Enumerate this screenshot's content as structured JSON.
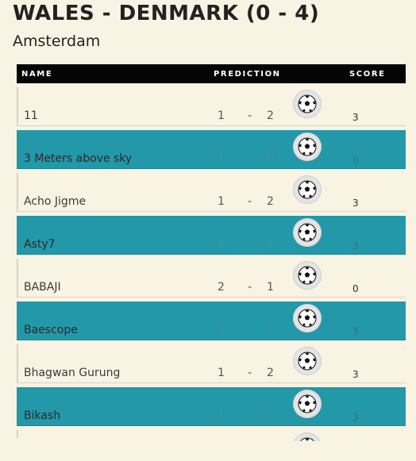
{
  "header": {
    "match_title": "WALES - DENMARK (0 - 4)",
    "venue": "Amsterdam"
  },
  "table": {
    "columns": {
      "name": "NAME",
      "prediction": "PREDICTION",
      "score": "SCORE"
    },
    "rows": [
      {
        "name": "11",
        "home": "1",
        "dash": "-",
        "away": "2",
        "score": "3",
        "style": "light"
      },
      {
        "name": "3 Meters above sky",
        "home": "1",
        "dash": "-",
        "away": "0",
        "score": "0",
        "style": "teal"
      },
      {
        "name": "Acho Jigme",
        "home": "1",
        "dash": "-",
        "away": "2",
        "score": "3",
        "style": "light"
      },
      {
        "name": "Asty7",
        "home": "1",
        "dash": "-",
        "away": "2",
        "score": "3",
        "style": "teal"
      },
      {
        "name": "BABAJI",
        "home": "2",
        "dash": "-",
        "away": "1",
        "score": "0",
        "style": "light"
      },
      {
        "name": "Baescope",
        "home": "1",
        "dash": "-",
        "away": "2",
        "score": "3",
        "style": "teal"
      },
      {
        "name": "Bhagwan Gurung",
        "home": "1",
        "dash": "-",
        "away": "2",
        "score": "3",
        "style": "light"
      },
      {
        "name": "Bikash",
        "home": "1",
        "dash": "-",
        "away": "3",
        "score": "3",
        "style": "teal"
      }
    ]
  },
  "icons": {
    "row_action": "soccer-ball-icon"
  },
  "colors": {
    "teal_row": "#2398a8",
    "background": "#f8f3e3",
    "header_bg": "#050505"
  }
}
